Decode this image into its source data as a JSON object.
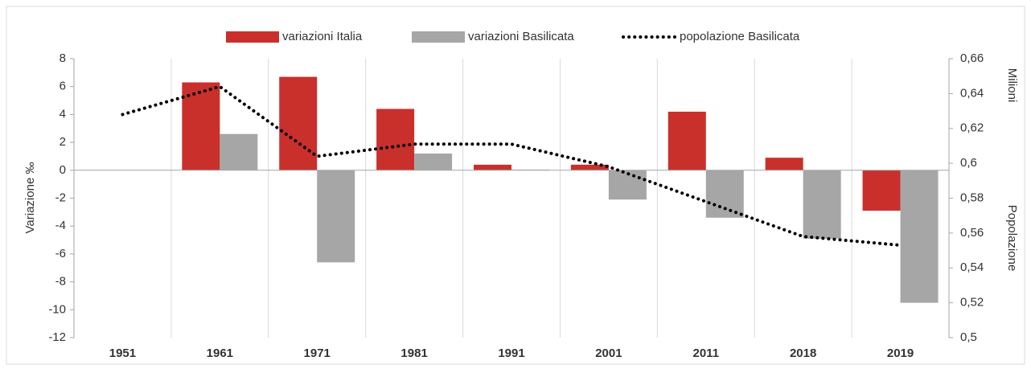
{
  "chart_data": {
    "type": "bar",
    "categories": [
      "1951",
      "1961",
      "1971",
      "1981",
      "1991",
      "2001",
      "2011",
      "2018",
      "2019"
    ],
    "series": [
      {
        "name": "variazioni Italia",
        "color": "#c9302c",
        "values": [
          null,
          6.3,
          6.7,
          4.4,
          0.4,
          0.4,
          4.2,
          0.9,
          -2.9
        ]
      },
      {
        "name": "variazioni Basilicata",
        "color": "#a6a6a6",
        "values": [
          null,
          2.6,
          -6.6,
          1.2,
          0.05,
          -2.1,
          -3.4,
          -4.9,
          -9.5
        ]
      },
      {
        "name": "popolazione Basilicata",
        "color": "#000000",
        "type": "line",
        "axis": "y2",
        "values": [
          0.628,
          0.644,
          0.604,
          0.611,
          0.611,
          0.598,
          0.578,
          0.558,
          0.553
        ]
      }
    ],
    "y_label": "Variazione ‰",
    "y2_label": "Popolazione",
    "y2_unit": "Milioni",
    "ylim": [
      -12,
      8
    ],
    "yticks": [
      -12,
      -10,
      -8,
      -6,
      -4,
      -2,
      0,
      2,
      4,
      6,
      8
    ],
    "y2lim": [
      0.5,
      0.66
    ],
    "y2ticks": [
      {
        "value": 0.5,
        "label": "0,5"
      },
      {
        "value": 0.52,
        "label": "0,52"
      },
      {
        "value": 0.54,
        "label": "0,54"
      },
      {
        "value": 0.56,
        "label": "0,56"
      },
      {
        "value": 0.58,
        "label": "0,58"
      },
      {
        "value": 0.6,
        "label": "0,6"
      },
      {
        "value": 0.62,
        "label": "0,62"
      },
      {
        "value": 0.64,
        "label": "0,64"
      },
      {
        "value": 0.66,
        "label": "0,66"
      }
    ],
    "legend": "top"
  }
}
